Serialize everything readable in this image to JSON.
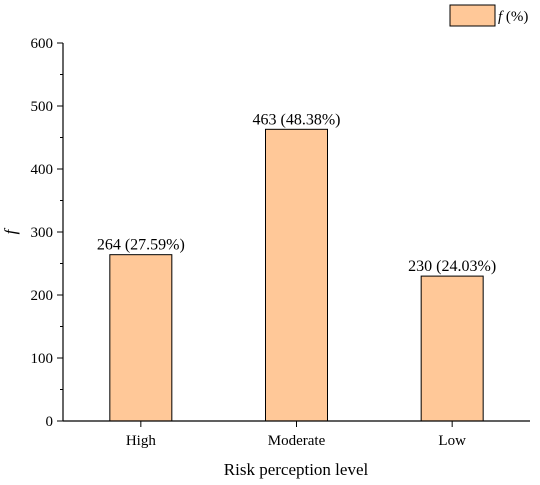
{
  "chart_data": {
    "type": "bar",
    "categories": [
      "High",
      "Moderate",
      "Low"
    ],
    "values": [
      264,
      463,
      230
    ],
    "data_labels": [
      "264 (27.59%)",
      "463 (48.38%)",
      "230 (24.03%)"
    ],
    "xlabel": "Risk perception level",
    "ylabel": "f",
    "ylim": [
      0,
      600
    ],
    "yticks": [
      0,
      100,
      200,
      300,
      400,
      500,
      600
    ],
    "grid": false,
    "legend": {
      "placement": "top-right",
      "label_italic": "f",
      "label_rest": " (%)"
    },
    "colors": {
      "bar_fill": "#FFC898",
      "bar_stroke": "#000000",
      "axis": "#000000"
    }
  }
}
